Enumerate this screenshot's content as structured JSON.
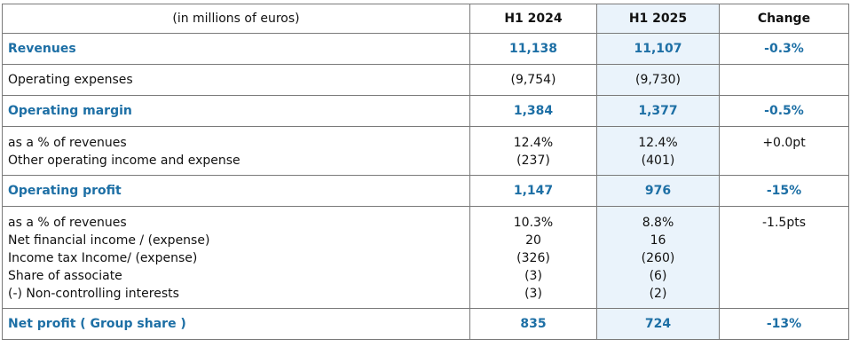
{
  "header": {
    "description": "(in millions of euros)",
    "col1": "H1 2024",
    "col2": "H1 2025",
    "col3": "Change"
  },
  "rows": [
    {
      "type": "bold",
      "label": "Revenues",
      "h1_2024": "11,138",
      "h1_2025": "11,107",
      "change": "-0.3%"
    },
    {
      "type": "plain",
      "label": "Operating expenses",
      "h1_2024": "(9,754)",
      "h1_2025": "(9,730)",
      "change": ""
    },
    {
      "type": "bold",
      "label": "Operating margin",
      "h1_2024": "1,384",
      "h1_2025": "1,377",
      "change": "-0.5%"
    },
    {
      "type": "multi",
      "lines": [
        {
          "label": "as a % of revenues",
          "h1_2024": "12.4%",
          "h1_2025": "12.4%",
          "change": "+0.0pt"
        },
        {
          "label": "Other operating income and expense",
          "h1_2024": "(237)",
          "h1_2025": "(401)",
          "change": ""
        }
      ]
    },
    {
      "type": "bold",
      "label": "Operating profit",
      "h1_2024": "1,147",
      "h1_2025": "976",
      "change": "-15%"
    },
    {
      "type": "multi",
      "lines": [
        {
          "label": "as a % of revenues",
          "h1_2024": "10.3%",
          "h1_2025": "8.8%",
          "change": "-1.5pts"
        },
        {
          "label": "Net financial income / (expense)",
          "h1_2024": "20",
          "h1_2025": "16",
          "change": ""
        },
        {
          "label": "Income tax Income/ (expense)",
          "h1_2024": "(326)",
          "h1_2025": "(260)",
          "change": ""
        },
        {
          "label": "Share of associate",
          "h1_2024": "(3)",
          "h1_2025": "(6)",
          "change": ""
        },
        {
          "label": "(-) Non-controlling interests",
          "h1_2024": "(3)",
          "h1_2025": "(2)",
          "change": ""
        }
      ]
    },
    {
      "type": "bold",
      "label": "Net profit ( Group share )",
      "h1_2024": "835",
      "h1_2025": "724",
      "change": "-13%"
    }
  ],
  "colors": {
    "accent": "#1d6fa5",
    "highlight_column": "#eaf3fb",
    "border": "#7a7a7a"
  }
}
